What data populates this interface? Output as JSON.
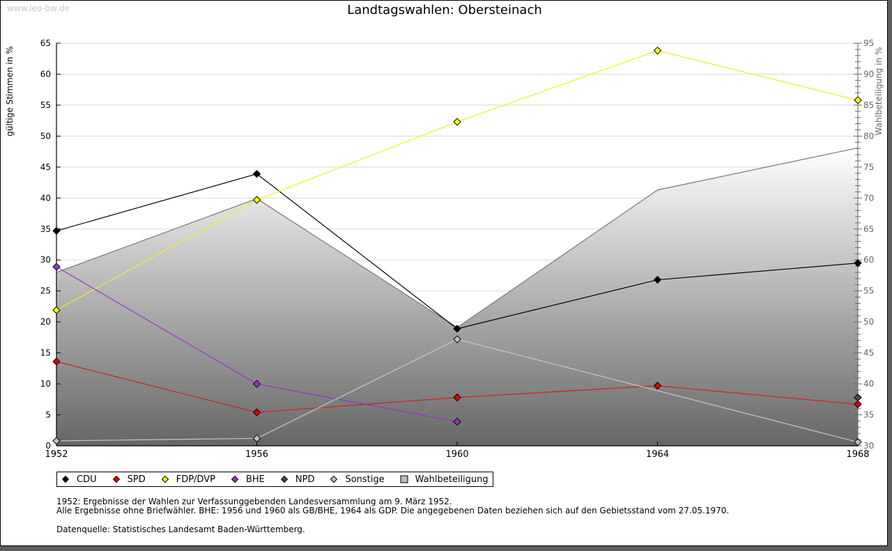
{
  "watermark": "www.leo-bw.de",
  "colors": {
    "CDU": "#000000",
    "SPD": "#e00000",
    "FDP/DVP": "#ffff00",
    "BHE": "#9933cc",
    "NPD": "#5a4632",
    "Sonstige": "#c8c8c8",
    "Wahlbeteiligung": "#888888"
  },
  "chart_data": {
    "type": "line",
    "title": "Landtagswahlen: Obersteinach",
    "xlabel": "",
    "ylabel": "gültige Stimmen in %",
    "ylabel_right": "Wahlbeteiligung in %",
    "x": [
      1952,
      1956,
      1960,
      1964,
      1968
    ],
    "x_tick_labels": [
      "1952",
      "1956",
      "1960",
      "1964",
      "1968"
    ],
    "ylim": [
      0,
      65
    ],
    "y_ticks": [
      0,
      5,
      10,
      15,
      20,
      25,
      30,
      35,
      40,
      45,
      50,
      55,
      60,
      65
    ],
    "ylim_right": [
      30,
      95
    ],
    "y_ticks_right": [
      30,
      35,
      40,
      45,
      50,
      55,
      60,
      65,
      70,
      75,
      80,
      85,
      90,
      95
    ],
    "grid": true,
    "legend_position": "bottom",
    "series": [
      {
        "name": "CDU",
        "values": [
          34.7,
          43.9,
          18.9,
          26.8,
          29.5
        ]
      },
      {
        "name": "SPD",
        "values": [
          13.6,
          5.4,
          7.8,
          9.7,
          6.7
        ]
      },
      {
        "name": "FDP/DVP",
        "values": [
          21.9,
          39.7,
          52.3,
          63.8,
          55.8
        ]
      },
      {
        "name": "BHE",
        "values": [
          28.9,
          10.0,
          3.9,
          null,
          null
        ]
      },
      {
        "name": "NPD",
        "values": [
          null,
          null,
          null,
          null,
          7.8
        ]
      },
      {
        "name": "Sonstige",
        "values": [
          0.8,
          1.2,
          17.2,
          null,
          0.6
        ]
      }
    ],
    "area_series": {
      "name": "Wahlbeteiligung",
      "axis": "right",
      "values": [
        58.0,
        69.9,
        49.1,
        71.3,
        78.1
      ]
    }
  },
  "legend": [
    "CDU",
    "SPD",
    "FDP/DVP",
    "BHE",
    "NPD",
    "Sonstige",
    "Wahlbeteiligung"
  ],
  "notes": [
    "1952: Ergebnisse der Wahlen zur Verfassunggebenden Landesversammlung am 9. März 1952.",
    "Alle Ergebnisse ohne Briefwähler. BHE: 1956 und 1960 als GB/BHE, 1964 als GDP. Die angegebenen Daten beziehen sich auf den Gebietsstand vom 27.05.1970."
  ],
  "source": "Datenquelle: Statistisches Landesamt Baden-Württemberg."
}
